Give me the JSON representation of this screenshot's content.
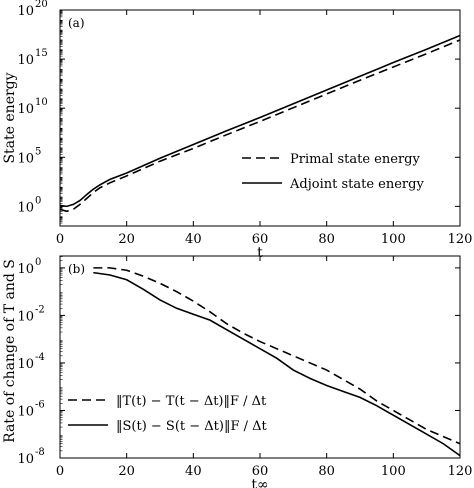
{
  "chart_data": [
    {
      "type": "line",
      "panel_label": "(a)",
      "xlabel": "t",
      "ylabel": "State energy",
      "xlim": [
        0,
        120
      ],
      "ylim_exp": [
        -2,
        20
      ],
      "yscale": "log",
      "x_ticks": [
        0,
        20,
        40,
        60,
        80,
        100,
        120
      ],
      "y_ticks": [
        {
          "base": "10",
          "exp": "0",
          "value_exp": 0
        },
        {
          "base": "10",
          "exp": "5",
          "value_exp": 5
        },
        {
          "base": "10",
          "exp": "10",
          "value_exp": 10
        },
        {
          "base": "10",
          "exp": "15",
          "value_exp": 15
        },
        {
          "base": "10",
          "exp": "20",
          "value_exp": 20
        }
      ],
      "grid": false,
      "legend_position": "bottom-right",
      "series": [
        {
          "name": "Primal state energy",
          "style": "dashed",
          "x": [
            0,
            2,
            4,
            6,
            8,
            10,
            12,
            15,
            20,
            30,
            40,
            50,
            60,
            70,
            80,
            90,
            100,
            110,
            120
          ],
          "y_log10": [
            -0.3,
            -0.5,
            -0.3,
            0.2,
            0.8,
            1.4,
            1.9,
            2.4,
            3.1,
            4.6,
            5.9,
            7.3,
            8.65,
            10.05,
            11.45,
            12.85,
            14.2,
            15.55,
            16.95
          ]
        },
        {
          "name": "Adjoint state energy",
          "style": "solid",
          "x": [
            0,
            2,
            4,
            6,
            8,
            10,
            12,
            15,
            20,
            30,
            40,
            50,
            60,
            70,
            80,
            90,
            100,
            110,
            120
          ],
          "y_log10": [
            0.1,
            0.0,
            0.2,
            0.6,
            1.2,
            1.75,
            2.2,
            2.75,
            3.4,
            4.9,
            6.3,
            7.7,
            9.05,
            10.45,
            11.85,
            13.25,
            14.65,
            16.0,
            17.4
          ]
        }
      ]
    },
    {
      "type": "line",
      "panel_label": "(b)",
      "xlabel": "t∞",
      "ylabel": "Rate of change of T and S",
      "xlim": [
        0,
        120
      ],
      "ylim_exp": [
        -8,
        0.5
      ],
      "yscale": "log",
      "x_ticks": [
        0,
        20,
        40,
        60,
        80,
        100,
        120
      ],
      "y_ticks": [
        {
          "base": "10",
          "exp": "0",
          "value_exp": 0
        },
        {
          "base": "10",
          "exp": "-2",
          "value_exp": -2
        },
        {
          "base": "10",
          "exp": "-4",
          "value_exp": -4
        },
        {
          "base": "10",
          "exp": "-6",
          "value_exp": -6
        },
        {
          "base": "10",
          "exp": "-8",
          "value_exp": -8
        }
      ],
      "grid": false,
      "legend_position": "bottom-left",
      "series": [
        {
          "name": "‖T(t) − T(t − Δt)‖F / Δt",
          "style": "dashed",
          "x": [
            10,
            15,
            20,
            25,
            30,
            35,
            40,
            45,
            50,
            55,
            60,
            65,
            70,
            75,
            80,
            85,
            90,
            95,
            100,
            105,
            110,
            115,
            120
          ],
          "y_log10": [
            0.0,
            0.0,
            -0.1,
            -0.35,
            -0.65,
            -1.0,
            -1.4,
            -1.85,
            -2.35,
            -2.75,
            -3.1,
            -3.4,
            -3.7,
            -4.0,
            -4.3,
            -4.7,
            -5.1,
            -5.6,
            -6.0,
            -6.4,
            -6.8,
            -7.1,
            -7.4
          ]
        },
        {
          "name": "‖S(t) − S(t − Δt)‖F / Δt",
          "style": "solid",
          "x": [
            10,
            15,
            20,
            25,
            30,
            35,
            40,
            45,
            50,
            55,
            60,
            65,
            70,
            75,
            80,
            85,
            90,
            95,
            100,
            105,
            110,
            115,
            120
          ],
          "y_log10": [
            -0.2,
            -0.3,
            -0.5,
            -0.9,
            -1.35,
            -1.7,
            -1.95,
            -2.2,
            -2.6,
            -3.0,
            -3.4,
            -3.8,
            -4.3,
            -4.65,
            -4.95,
            -5.2,
            -5.45,
            -5.8,
            -6.2,
            -6.6,
            -7.0,
            -7.4,
            -7.9
          ]
        }
      ]
    }
  ]
}
